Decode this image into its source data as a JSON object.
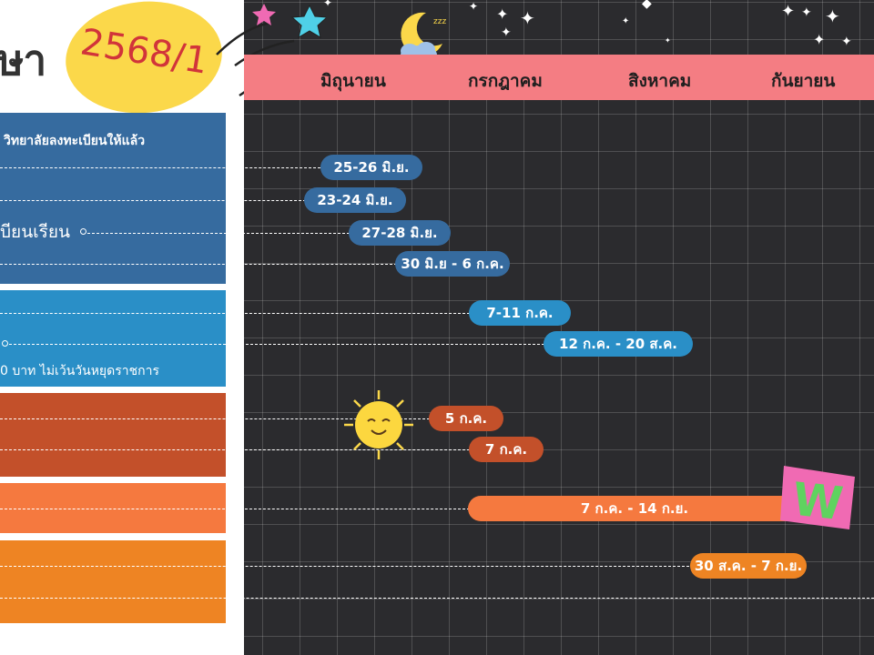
{
  "header": {
    "title_fragment": "ษา",
    "year": "2568/1"
  },
  "months": [
    "มิถุนายน",
    "กรกฎาคม",
    "สิงหาคม",
    "กันยายน"
  ],
  "left_panels": {
    "p1_line1": "วิทยาลัยลงทะเบียนให้แล้ว",
    "p1_line3": "บียนเรียน",
    "p2_line3": "0 บาท ไม่เว้นวันหยุดราชการ"
  },
  "bars": [
    {
      "label": "25-26 มิ.ย."
    },
    {
      "label": "23-24 มิ.ย."
    },
    {
      "label": "27-28 มิ.ย."
    },
    {
      "label": "30 มิ.ย - 6 ก.ค."
    },
    {
      "label": "7-11 ก.ค."
    },
    {
      "label": "12 ก.ค. - 20 ส.ค."
    },
    {
      "label": "5 ก.ค."
    },
    {
      "label": "7 ก.ค."
    },
    {
      "label": "7 ก.ค. - 14 ก.ย."
    },
    {
      "label": "30 ส.ค. - 7 ก.ย."
    }
  ],
  "colors": {
    "navy": "#366b9f",
    "sky": "#2a8fc7",
    "rust": "#c3502a",
    "coral": "#f5793f",
    "orange": "#ee8423",
    "pink_band": "#f47d83",
    "yellow": "#fbd84a",
    "calendar_bg": "#2b2b2e"
  },
  "icons": [
    "star-icon",
    "moon-icon",
    "sun-icon",
    "sticker-w-icon"
  ]
}
